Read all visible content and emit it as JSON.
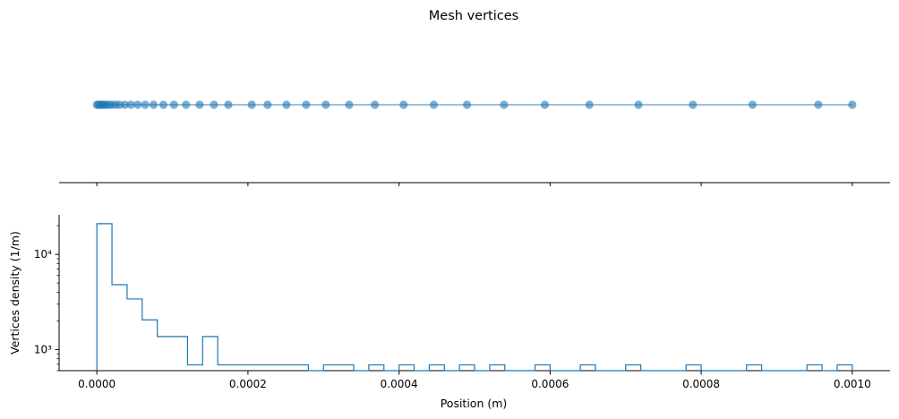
{
  "chart_data": [
    {
      "type": "scatter",
      "title": "Mesh vertices",
      "xlabel": "",
      "ylabel": "",
      "shared_x": true,
      "xlim": [
        -5e-05,
        0.00105
      ],
      "xticks": [
        0.0,
        0.0002,
        0.0004,
        0.0006,
        0.0008,
        0.001
      ],
      "y_axis_visible": false,
      "marker_color": "#1f77b4",
      "line_color": "#1f77b4",
      "x": [
        0.0,
        2e-06,
        4e-06,
        6e-06,
        8e-06,
        1e-05,
        1.3e-05,
        1.6e-05,
        2e-05,
        2.5e-05,
        3e-05,
        3.7e-05,
        4.5e-05,
        5.4e-05,
        6.4e-05,
        7.5e-05,
        8.8e-05,
        0.000102,
        0.000118,
        0.000136,
        0.000155,
        0.000174,
        0.000205,
        0.000226,
        0.000251,
        0.000277,
        0.000303,
        0.000334,
        0.000368,
        0.000406,
        0.000446,
        0.00049,
        0.000539,
        0.000593,
        0.000652,
        0.000717,
        0.000789,
        0.000868,
        0.000955,
        0.001
      ],
      "y": [
        0,
        0,
        0,
        0,
        0,
        0,
        0,
        0,
        0,
        0,
        0,
        0,
        0,
        0,
        0,
        0,
        0,
        0,
        0,
        0,
        0,
        0,
        0,
        0,
        0,
        0,
        0,
        0,
        0,
        0,
        0,
        0,
        0,
        0,
        0,
        0,
        0,
        0,
        0,
        0
      ]
    },
    {
      "type": "histogram",
      "title": "",
      "xlabel": "Position (m)",
      "ylabel": "Vertices density (1/m)",
      "yscale": "log",
      "xlim": [
        -5e-05,
        0.00105
      ],
      "ylim": [
        600,
        26000
      ],
      "xticks": [
        0.0,
        0.0002,
        0.0004,
        0.0006,
        0.0008,
        0.001
      ],
      "xtick_labels": [
        "0.0000",
        "0.0002",
        "0.0004",
        "0.0006",
        "0.0008",
        "0.0010"
      ],
      "yticks": [
        1000,
        10000
      ],
      "ytick_labels": [
        "10³",
        "10⁴"
      ],
      "color": "#1f77b4",
      "bin_edges": [
        0.0,
        2e-05,
        4e-05,
        6e-05,
        8e-05,
        0.0001,
        0.00012,
        0.00014,
        0.00016,
        0.00018,
        0.0002,
        0.00022,
        0.00024,
        0.00026,
        0.00028,
        0.0003,
        0.00032,
        0.00034,
        0.00036,
        0.00038,
        0.0004,
        0.00042,
        0.00044,
        0.00046,
        0.00048,
        0.0005,
        0.00052,
        0.00054,
        0.00056,
        0.00058,
        0.0006,
        0.00062,
        0.00064,
        0.00066,
        0.00068,
        0.0007,
        0.00072,
        0.00074,
        0.00076,
        0.00078,
        0.0008,
        0.00082,
        0.00084,
        0.00086,
        0.00088,
        0.0009,
        0.00092,
        0.00094,
        0.00096,
        0.00098,
        0.001
      ],
      "values": [
        21000,
        4800,
        3400,
        2050,
        1370,
        1370,
        690,
        1370,
        690,
        690,
        690,
        690,
        690,
        690,
        0,
        690,
        690,
        0,
        690,
        0,
        690,
        0,
        690,
        0,
        690,
        0,
        690,
        0,
        0,
        690,
        0,
        0,
        690,
        0,
        0,
        690,
        0,
        0,
        0,
        690,
        0,
        0,
        0,
        690,
        0,
        0,
        0,
        690,
        0,
        690
      ]
    }
  ]
}
